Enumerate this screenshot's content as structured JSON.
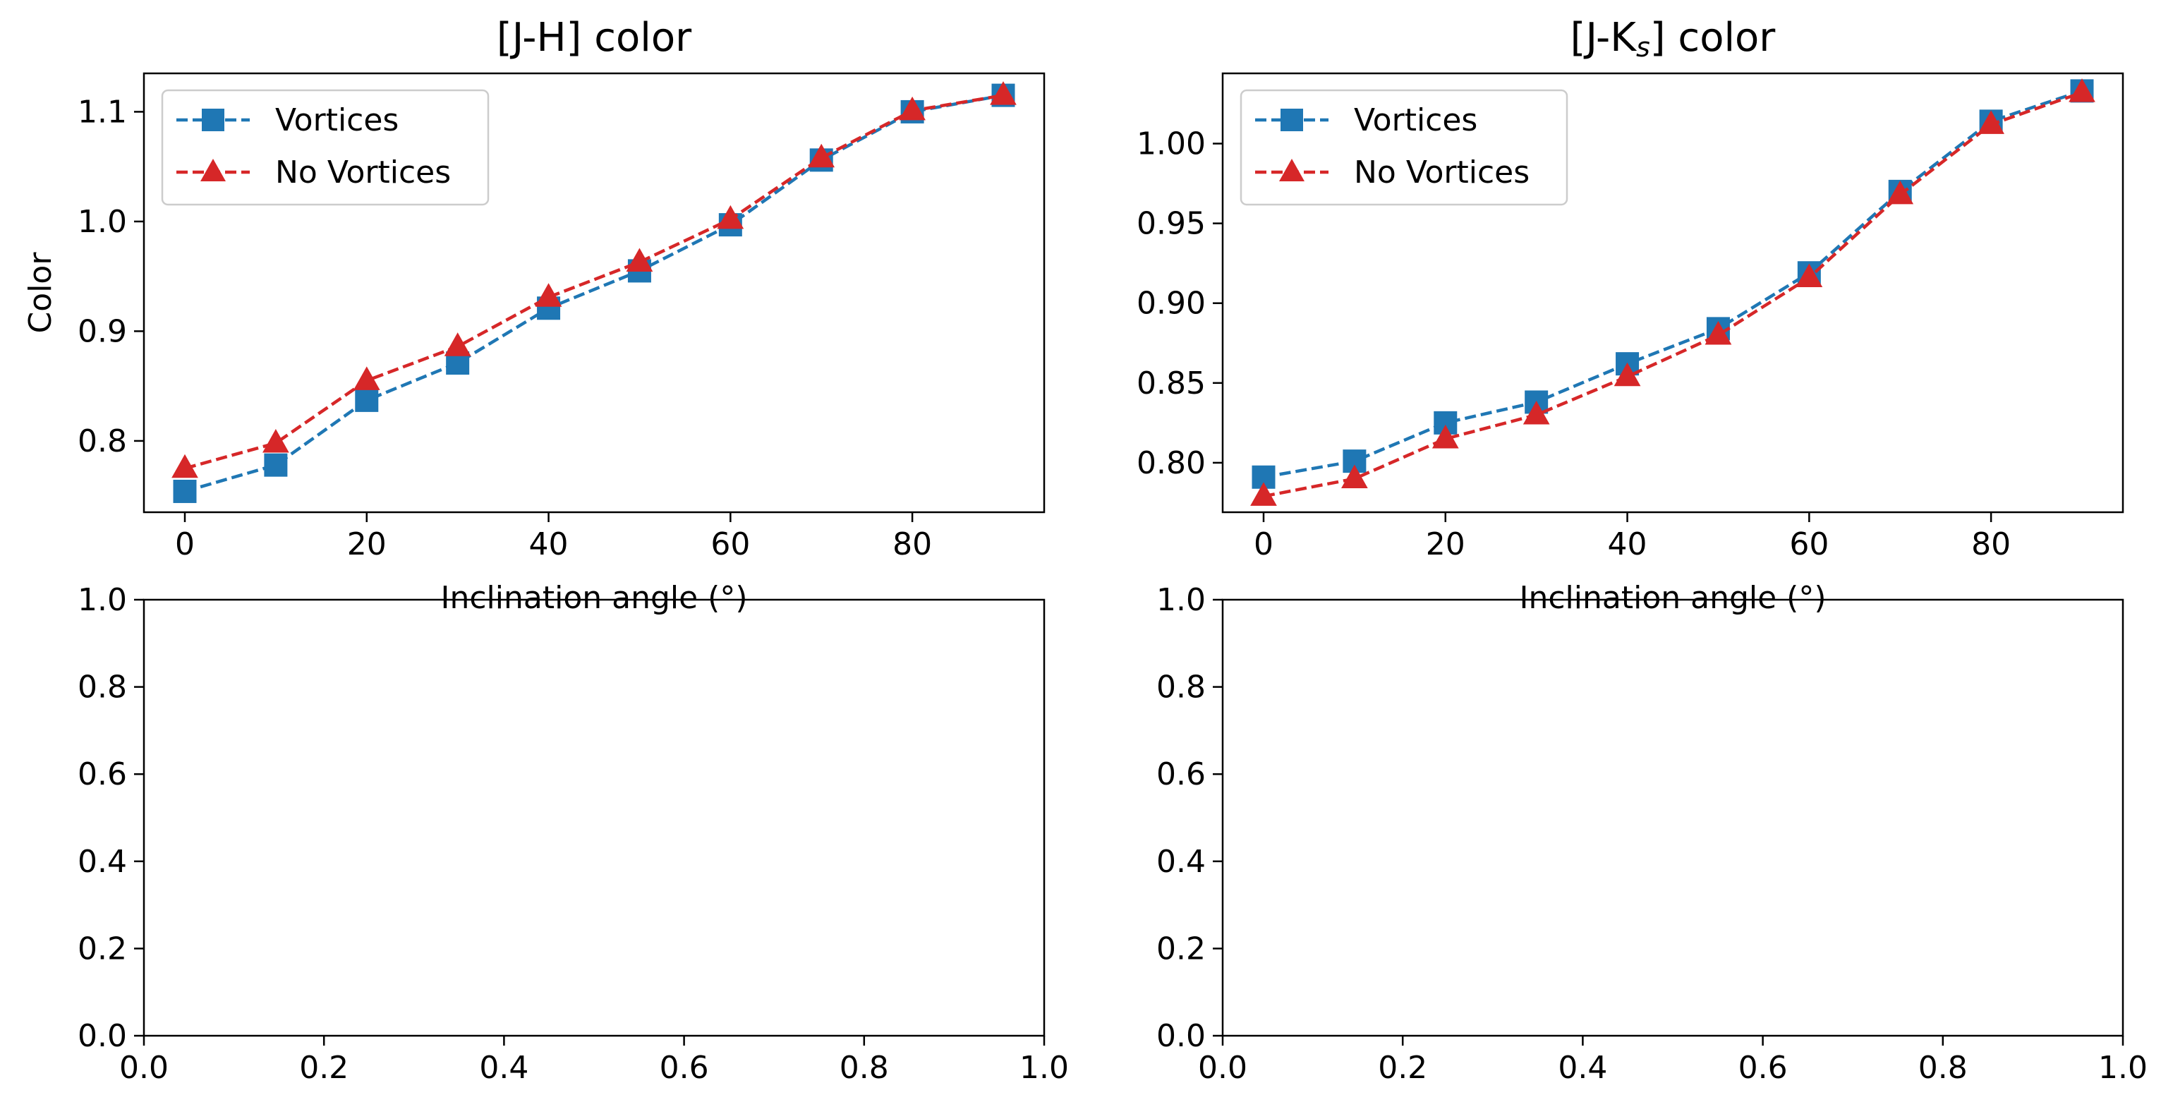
{
  "chart_data": [
    {
      "type": "line",
      "title": "[J-H] color",
      "xlabel": "Inclination angle (°)",
      "ylabel": "Color",
      "xlim": [
        -4.5,
        94.5
      ],
      "ylim": [
        0.735,
        1.135
      ],
      "xticks": [
        0,
        20,
        40,
        60,
        80
      ],
      "yticks": [
        0.8,
        0.9,
        1.0,
        1.1
      ],
      "ytick_labels": [
        "0.8",
        "0.9",
        "1.0",
        "1.1"
      ],
      "legend_position": "upper-left",
      "grid": false,
      "x": [
        0,
        10,
        20,
        30,
        40,
        50,
        60,
        70,
        80,
        90
      ],
      "series": [
        {
          "name": "Vortices",
          "color": "#1f77b4",
          "marker": "square",
          "linestyle": "dashed",
          "values": [
            0.754,
            0.778,
            0.837,
            0.871,
            0.921,
            0.955,
            0.997,
            1.056,
            1.1,
            1.115
          ]
        },
        {
          "name": "No Vortices",
          "color": "#d62728",
          "marker": "triangle",
          "linestyle": "dashed",
          "values": [
            0.775,
            0.798,
            0.855,
            0.886,
            0.931,
            0.963,
            1.002,
            1.058,
            1.101,
            1.115
          ]
        }
      ]
    },
    {
      "type": "line",
      "title": "[J-Ks] color",
      "xlabel": "Inclination angle (°)",
      "ylabel": "",
      "xlim": [
        -4.5,
        94.5
      ],
      "ylim": [
        0.769,
        1.044
      ],
      "xticks": [
        0,
        20,
        40,
        60,
        80
      ],
      "yticks": [
        0.8,
        0.85,
        0.9,
        0.95,
        1.0
      ],
      "ytick_labels": [
        "0.80",
        "0.85",
        "0.90",
        "0.95",
        "1.00"
      ],
      "legend_position": "upper-left",
      "grid": false,
      "x": [
        0,
        10,
        20,
        30,
        40,
        50,
        60,
        70,
        80,
        90
      ],
      "series": [
        {
          "name": "Vortices",
          "color": "#1f77b4",
          "marker": "square",
          "linestyle": "dashed",
          "values": [
            0.791,
            0.801,
            0.825,
            0.838,
            0.862,
            0.884,
            0.919,
            0.97,
            1.014,
            1.033
          ]
        },
        {
          "name": "No Vortices",
          "color": "#d62728",
          "marker": "triangle",
          "linestyle": "dashed",
          "values": [
            0.779,
            0.79,
            0.815,
            0.83,
            0.854,
            0.88,
            0.916,
            0.968,
            1.012,
            1.032
          ]
        }
      ]
    },
    {
      "type": "line",
      "title": "",
      "xlabel": "",
      "ylabel": "",
      "xlim": [
        0,
        1
      ],
      "ylim": [
        0,
        1
      ],
      "xticks": [
        0,
        0.2,
        0.4,
        0.6,
        0.8,
        1.0
      ],
      "xtick_labels": [
        "0.0",
        "0.2",
        "0.4",
        "0.6",
        "0.8",
        "1.0"
      ],
      "yticks": [
        0,
        0.2,
        0.4,
        0.6,
        0.8,
        1.0
      ],
      "ytick_labels": [
        "0.0",
        "0.2",
        "0.4",
        "0.6",
        "0.8",
        "1.0"
      ],
      "grid": false,
      "series": []
    },
    {
      "type": "line",
      "title": "",
      "xlabel": "",
      "ylabel": "",
      "xlim": [
        0,
        1
      ],
      "ylim": [
        0,
        1
      ],
      "xticks": [
        0,
        0.2,
        0.4,
        0.6,
        0.8,
        1.0
      ],
      "xtick_labels": [
        "0.0",
        "0.2",
        "0.4",
        "0.6",
        "0.8",
        "1.0"
      ],
      "yticks": [
        0,
        0.2,
        0.4,
        0.6,
        0.8,
        1.0
      ],
      "ytick_labels": [
        "0.0",
        "0.2",
        "0.4",
        "0.6",
        "0.8",
        "1.0"
      ],
      "grid": false,
      "series": []
    }
  ]
}
